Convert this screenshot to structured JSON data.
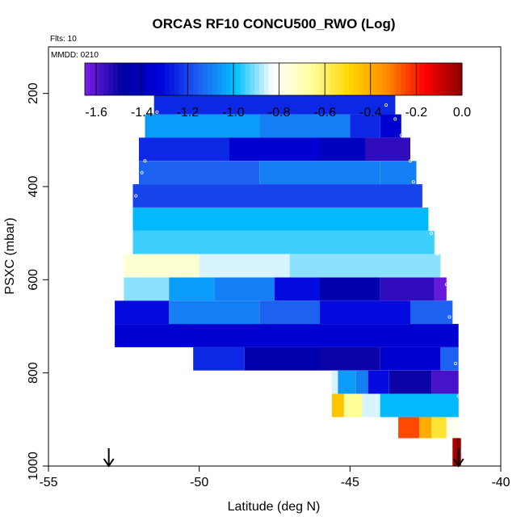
{
  "chart_data": {
    "type": "heatmap",
    "title": "ORCAS RF10 CONCU500_RWO (Log)",
    "annotations": [
      "Flts: 10",
      "MMDD: 0210"
    ],
    "xlabel": "Latitude (deg N)",
    "ylabel": "PSXC (mbar)",
    "xlim": [
      -55,
      -40
    ],
    "ylim": [
      1000,
      100
    ],
    "x_ticks": [
      -55,
      -50,
      -45,
      -40
    ],
    "y_ticks": [
      200,
      400,
      600,
      800,
      1000
    ],
    "grid": false,
    "colorbar": {
      "range": [
        -1.65,
        0.0
      ],
      "ticks": [
        -1.6,
        -1.4,
        -1.2,
        -1.0,
        -0.8,
        -0.6,
        -0.4,
        -0.2,
        0.0
      ],
      "tick_labels": [
        "-1.6",
        "-1.4",
        "-1.2",
        "-1.0",
        "-0.8",
        "-0.6",
        "-0.4",
        "-0.2",
        "0.0"
      ],
      "colors": [
        "#7b1fe6",
        "#0000a0",
        "#0000dc",
        "#1e5ef0",
        "#00bfff",
        "#ffffff",
        "#ffffa0",
        "#ffd700",
        "#ff8c00",
        "#ff0000",
        "#8b0000"
      ],
      "placement": "top"
    },
    "markers": {
      "arrows_at_lat": [
        -53.0,
        -41.4
      ]
    },
    "rows": [
      {
        "p": 180,
        "lat_min": -51.2,
        "lat_max": -43.8,
        "row_value": -1.1,
        "segments": [
          [
            -51.2,
            -0.75
          ],
          [
            -51.0,
            -1.05
          ],
          [
            -50.4,
            -1.5
          ],
          [
            -50.2,
            -1.1
          ],
          [
            -49.0,
            -1.0
          ],
          [
            -47.5,
            -1.1
          ],
          [
            -46.8,
            -1.25
          ],
          [
            -46.3,
            -0.9
          ],
          [
            -45.8,
            -1.1
          ],
          [
            -45.4,
            -1.55
          ],
          [
            -45.2,
            -1.2
          ],
          [
            -44.6,
            -1.05
          ],
          [
            -44.4,
            -1.3
          ]
        ]
      },
      {
        "p": 220,
        "lat_min": -51.5,
        "lat_max": -43.5,
        "row_value": -1.25
      },
      {
        "p": 270,
        "lat_min": -51.8,
        "lat_max": -43.3,
        "row_value": -1.1,
        "segments": [
          [
            -51.8,
            -1.05
          ],
          [
            -48.0,
            -1.1
          ],
          [
            -45.0,
            -1.25
          ],
          [
            -44.0,
            -1.35
          ]
        ]
      },
      {
        "p": 320,
        "lat_min": -52.0,
        "lat_max": -43.0,
        "row_value": -1.3,
        "segments": [
          [
            -52.0,
            -1.25
          ],
          [
            -49.0,
            -1.35
          ],
          [
            -46.0,
            -1.4
          ],
          [
            -44.5,
            -1.55
          ]
        ]
      },
      {
        "p": 370,
        "lat_min": -52.0,
        "lat_max": -42.8,
        "row_value": -1.1,
        "segments": [
          [
            -52.0,
            -1.15
          ],
          [
            -48.0,
            -1.1
          ],
          [
            -44.0,
            -1.1
          ]
        ]
      },
      {
        "p": 420,
        "lat_min": -52.2,
        "lat_max": -42.6,
        "row_value": -1.2
      },
      {
        "p": 470,
        "lat_min": -52.2,
        "lat_max": -42.4,
        "row_value": -1.0
      },
      {
        "p": 520,
        "lat_min": -52.2,
        "lat_max": -42.2,
        "row_value": -0.95
      },
      {
        "p": 570,
        "lat_min": -52.5,
        "lat_max": -42.0,
        "row_value": -0.85,
        "segments": [
          [
            -52.5,
            -0.75
          ],
          [
            -50.0,
            -0.85
          ],
          [
            -47.0,
            -0.9
          ]
        ]
      },
      {
        "p": 620,
        "lat_min": -52.5,
        "lat_max": -41.8,
        "row_value": -1.2,
        "segments": [
          [
            -52.5,
            -0.9
          ],
          [
            -51.0,
            -1.05
          ],
          [
            -49.5,
            -1.1
          ],
          [
            -47.5,
            -1.3
          ],
          [
            -46.0,
            -1.45
          ],
          [
            -44.0,
            -1.55
          ],
          [
            -42.2,
            -1.62
          ]
        ]
      },
      {
        "p": 670,
        "lat_min": -52.8,
        "lat_max": -41.6,
        "row_value": -1.2,
        "segments": [
          [
            -52.8,
            -1.3
          ],
          [
            -51.0,
            -1.1
          ],
          [
            -48.0,
            -1.15
          ],
          [
            -46.0,
            -1.3
          ],
          [
            -43.0,
            -1.15
          ]
        ]
      },
      {
        "p": 720,
        "lat_min": -52.8,
        "lat_max": -41.4,
        "row_value": -1.35
      },
      {
        "p": 770,
        "lat_min": -50.2,
        "lat_max": -41.4,
        "row_value": -1.4,
        "segments": [
          [
            -50.2,
            -1.25
          ],
          [
            -48.5,
            -1.45
          ],
          [
            -46.0,
            -1.5
          ],
          [
            -44.0,
            -1.35
          ],
          [
            -42.0,
            -1.15
          ]
        ]
      },
      {
        "p": 820,
        "lat_min": -45.6,
        "lat_max": -41.4,
        "row_value": -1.3,
        "segments": [
          [
            -45.6,
            -0.85
          ],
          [
            -45.4,
            -1.05
          ],
          [
            -44.8,
            -1.1
          ],
          [
            -44.4,
            -1.3
          ],
          [
            -43.7,
            -1.5
          ],
          [
            -42.3,
            -1.58
          ]
        ]
      },
      {
        "p": 870,
        "lat_min": -45.6,
        "lat_max": -41.4,
        "row_value": -1.0,
        "segments": [
          [
            -45.6,
            -0.45
          ],
          [
            -45.2,
            -0.65
          ],
          [
            -44.6,
            -0.85
          ],
          [
            -44.0,
            -1.0
          ]
        ]
      },
      {
        "p": 920,
        "lat_min": -43.4,
        "lat_max": -41.4,
        "row_value": -0.5,
        "segments": [
          [
            -43.4,
            -0.25
          ],
          [
            -42.7,
            -0.4
          ],
          [
            -42.3,
            -0.55
          ],
          [
            -41.8,
            -0.8
          ]
        ]
      },
      {
        "p": 960,
        "lat_min": -41.6,
        "lat_max": -41.4,
        "row_value": -0.05
      }
    ],
    "flight_track": {
      "points": [
        [
          -52.9,
          690
        ],
        [
          -52.9,
          720
        ],
        [
          -52.1,
          420
        ],
        [
          -51.9,
          370
        ],
        [
          -51.8,
          345
        ],
        [
          -51.4,
          240
        ],
        [
          -50.9,
          190
        ],
        [
          -50.0,
          180
        ],
        [
          -48.0,
          180
        ],
        [
          -46.0,
          180
        ],
        [
          -44.6,
          183
        ],
        [
          -44.1,
          200
        ],
        [
          -43.8,
          225
        ],
        [
          -43.5,
          255
        ],
        [
          -43.3,
          290
        ],
        [
          -43.0,
          345
        ],
        [
          -42.9,
          390
        ],
        [
          -42.5,
          440
        ],
        [
          -42.3,
          500
        ],
        [
          -42.1,
          545
        ],
        [
          -41.8,
          610
        ],
        [
          -41.7,
          680
        ],
        [
          -41.5,
          780
        ],
        [
          -41.4,
          850
        ],
        [
          -41.5,
          915
        ]
      ]
    }
  }
}
